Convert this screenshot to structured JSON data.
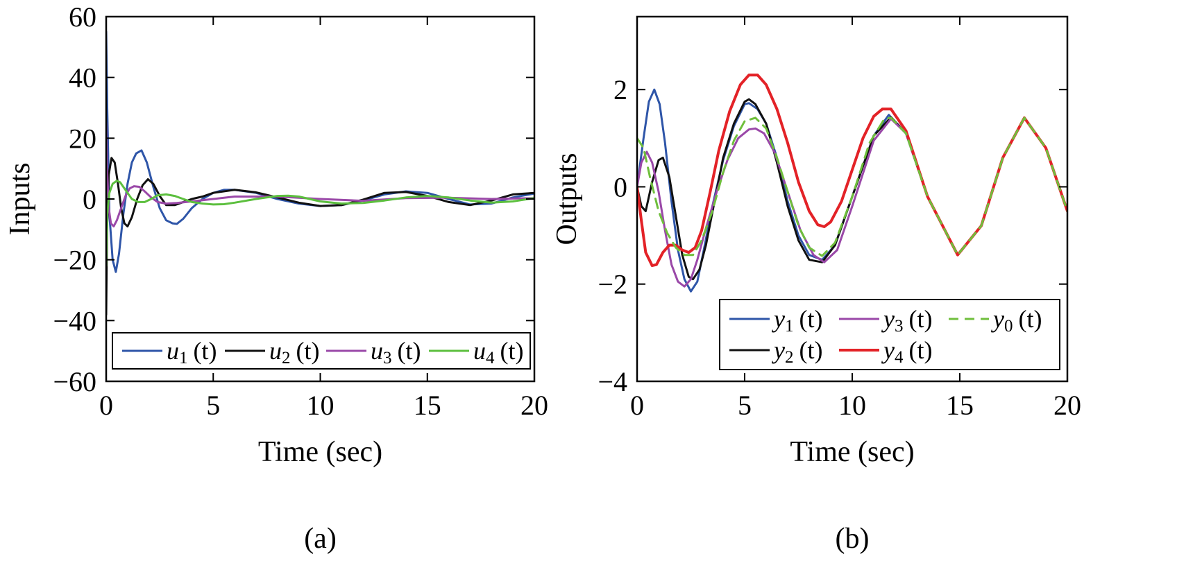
{
  "chart_data": [
    {
      "type": "line",
      "panel_label": "(a)",
      "xlabel": "Time (sec)",
      "ylabel": "Inputs",
      "xlim": [
        0,
        20
      ],
      "ylim": [
        -60,
        60
      ],
      "x_ticks": [
        "0",
        "5",
        "10",
        "15",
        "20"
      ],
      "y_ticks": [
        "60",
        "40",
        "20",
        "0",
        "−20",
        "−40",
        "−60"
      ],
      "grid": false,
      "legend_position": "bottom, single row",
      "series": [
        {
          "name": "u1 (t)",
          "sym": "u",
          "sub": "1",
          "arg": "(t)",
          "color": "#2e55a8",
          "dashed": false,
          "x": [
            0,
            0.05,
            0.15,
            0.3,
            0.45,
            0.6,
            0.8,
            1.0,
            1.2,
            1.4,
            1.65,
            1.9,
            2.2,
            2.5,
            2.8,
            3.1,
            3.3,
            3.6,
            4.0,
            4.5,
            5.0,
            5.5,
            6.0,
            7.0,
            8.0,
            9.0,
            10.0,
            11.0,
            12.0,
            13.0,
            14.0,
            15.0,
            16.0,
            17.0,
            18.0,
            19.0,
            20.0
          ],
          "y": [
            55,
            30,
            -5,
            -20,
            -24,
            -18,
            -5,
            5,
            12,
            15,
            16,
            12,
            4,
            -3,
            -7,
            -8,
            -8.2,
            -6.5,
            -3,
            0,
            2,
            3,
            3,
            2,
            0,
            -1.5,
            -2.3,
            -2,
            -0.5,
            1.5,
            2.5,
            2,
            0,
            -1.8,
            -1.5,
            0.5,
            1.8
          ]
        },
        {
          "name": "u2 (t)",
          "sym": "u",
          "sub": "2",
          "arg": "(t)",
          "color": "#111111",
          "dashed": false,
          "x": [
            0,
            0.04,
            0.12,
            0.25,
            0.4,
            0.55,
            0.7,
            0.85,
            1.0,
            1.2,
            1.45,
            1.7,
            1.95,
            2.2,
            2.5,
            2.8,
            3.2,
            3.6,
            4.0,
            4.5,
            5.0,
            6.0,
            7.0,
            8.0,
            9.0,
            10.0,
            11.0,
            12.0,
            13.0,
            14.0,
            15.0,
            16.0,
            17.0,
            18.0,
            19.0,
            20.0
          ],
          "y": [
            -38,
            -10,
            8,
            13.5,
            12,
            5,
            -3,
            -8,
            -9,
            -6,
            0,
            4.5,
            6.5,
            5,
            1,
            -2,
            -2,
            -1,
            0,
            0.8,
            2,
            3,
            2.2,
            0.5,
            -1.2,
            -2.3,
            -2,
            -0.2,
            2,
            2.3,
            1,
            -1,
            -2,
            -0.5,
            1.5,
            2
          ]
        },
        {
          "name": "u3 (t)",
          "sym": "u",
          "sub": "3",
          "arg": "(t)",
          "color": "#9a48a8",
          "dashed": false,
          "x": [
            0,
            0.04,
            0.12,
            0.22,
            0.35,
            0.5,
            0.7,
            0.9,
            1.1,
            1.3,
            1.55,
            1.8,
            2.1,
            2.4,
            2.8,
            3.3,
            4.0,
            5.0,
            6.0,
            8.0,
            10.0,
            12.0,
            14.0,
            16.0,
            18.0,
            20.0
          ],
          "y": [
            25,
            10,
            -3,
            -8,
            -9,
            -7,
            -3,
            1,
            3.5,
            4.2,
            4,
            2.5,
            0.5,
            -1,
            -1.5,
            -1.3,
            -0.8,
            0,
            0.8,
            0.8,
            0,
            -0.6,
            0.3,
            0.4,
            0,
            0.3
          ]
        },
        {
          "name": "u4 (t)",
          "sym": "u",
          "sub": "4",
          "arg": "(t)",
          "color": "#5cbf3e",
          "dashed": false,
          "x": [
            0,
            0.05,
            0.15,
            0.3,
            0.5,
            0.65,
            0.8,
            1.0,
            1.2,
            1.5,
            1.8,
            2.1,
            2.4,
            2.8,
            3.2,
            3.6,
            4.0,
            4.5,
            5.0,
            5.5,
            6.0,
            7.0,
            8.0,
            8.5,
            9.0,
            10.0,
            11.0,
            12.0,
            13.0,
            14.0,
            15.0,
            16.0,
            17.0,
            18.0,
            19.0,
            20.0
          ],
          "y": [
            -22,
            -5,
            2,
            5,
            6,
            5.5,
            4,
            2,
            0,
            -1,
            -1,
            0,
            1.2,
            1.5,
            1,
            0,
            -1,
            -1.5,
            -1.8,
            -1.7,
            -1.2,
            0,
            1,
            1.1,
            0.8,
            -0.8,
            -1.5,
            -1.3,
            -0.5,
            0.5,
            1,
            0.5,
            -0.5,
            -1.2,
            -0.8,
            0.3
          ]
        }
      ]
    },
    {
      "type": "line",
      "panel_label": "(b)",
      "xlabel": "Time (sec)",
      "ylabel": "Outputs",
      "xlim": [
        0,
        20
      ],
      "ylim": [
        -4,
        3.5
      ],
      "x_ticks": [
        "0",
        "5",
        "10",
        "15",
        "20"
      ],
      "y_ticks": [
        "2",
        "0",
        "−2",
        "−4"
      ],
      "y_tick_values": [
        2,
        0,
        -2,
        -4
      ],
      "grid": false,
      "legend_position": "bottom-right, three columns",
      "series": [
        {
          "name": "y1 (t)",
          "sym": "y",
          "sub": "1",
          "arg": "(t)",
          "color": "#2e55a8",
          "dashed": false,
          "x": [
            0,
            0.3,
            0.55,
            0.8,
            1.05,
            1.3,
            1.6,
            1.9,
            2.2,
            2.5,
            2.8,
            3.1,
            3.5,
            4.0,
            4.5,
            5.0,
            5.2,
            5.6,
            6.0,
            6.5,
            7.0,
            7.5,
            8.0,
            8.6,
            9.2,
            10.0,
            11.0,
            11.7,
            12.5,
            13.5,
            14.9,
            16.0,
            17.0,
            18.0,
            19.0,
            20.0
          ],
          "y": [
            0,
            1.0,
            1.75,
            2.0,
            1.7,
            0.9,
            -0.3,
            -1.3,
            -1.9,
            -2.15,
            -1.95,
            -1.3,
            -0.4,
            0.55,
            1.25,
            1.7,
            1.72,
            1.6,
            1.3,
            0.6,
            -0.3,
            -1.0,
            -1.4,
            -1.5,
            -1.2,
            -0.2,
            1.05,
            1.48,
            1.1,
            -0.2,
            -1.4,
            -0.8,
            0.6,
            1.42,
            0.8,
            -0.5
          ]
        },
        {
          "name": "y2 (t)",
          "sym": "y",
          "sub": "2",
          "arg": "(t)",
          "color": "#111111",
          "dashed": false,
          "x": [
            0,
            0.2,
            0.4,
            0.7,
            1.0,
            1.2,
            1.5,
            1.8,
            2.1,
            2.4,
            2.6,
            2.9,
            3.2,
            3.6,
            4.0,
            4.5,
            5.0,
            5.2,
            5.5,
            6.0,
            6.5,
            7.0,
            7.5,
            8.0,
            8.6,
            9.2,
            10.0,
            11.0,
            11.8,
            12.5,
            13.5,
            14.9,
            16.0,
            17.0,
            18.0,
            19.0,
            20.0
          ],
          "y": [
            0,
            -0.4,
            -0.5,
            0.1,
            0.55,
            0.6,
            0.2,
            -0.6,
            -1.4,
            -1.85,
            -1.9,
            -1.7,
            -1.2,
            -0.3,
            0.6,
            1.3,
            1.75,
            1.8,
            1.7,
            1.3,
            0.5,
            -0.4,
            -1.1,
            -1.5,
            -1.55,
            -1.2,
            -0.2,
            1.05,
            1.43,
            1.1,
            -0.2,
            -1.4,
            -0.8,
            0.6,
            1.42,
            0.8,
            -0.5
          ]
        },
        {
          "name": "y3 (t)",
          "sym": "y",
          "sub": "3",
          "arg": "(t)",
          "color": "#9a48a8",
          "dashed": false,
          "x": [
            0,
            0.2,
            0.45,
            0.7,
            1.0,
            1.3,
            1.6,
            1.9,
            2.2,
            2.5,
            2.8,
            3.2,
            3.7,
            4.2,
            4.7,
            5.2,
            5.5,
            5.9,
            6.4,
            7.0,
            7.6,
            8.2,
            8.7,
            9.3,
            10.0,
            11.0,
            11.8,
            12.5,
            13.5,
            14.9,
            16.0,
            17.0,
            18.0,
            19.0,
            20.0
          ],
          "y": [
            0,
            0.5,
            0.72,
            0.5,
            -0.1,
            -0.9,
            -1.6,
            -1.95,
            -2.05,
            -1.9,
            -1.5,
            -0.85,
            -0.1,
            0.55,
            1.0,
            1.18,
            1.2,
            1.1,
            0.7,
            -0.1,
            -0.9,
            -1.4,
            -1.55,
            -1.3,
            -0.4,
            0.95,
            1.4,
            1.1,
            -0.2,
            -1.4,
            -0.8,
            0.6,
            1.42,
            0.8,
            -0.5
          ]
        },
        {
          "name": "y4 (t)",
          "sym": "y",
          "sub": "4",
          "arg": "(t)",
          "color": "#e32227",
          "dashed": false,
          "x": [
            0,
            0.2,
            0.4,
            0.7,
            0.9,
            1.2,
            1.5,
            1.8,
            2.1,
            2.4,
            2.7,
            3.0,
            3.4,
            3.8,
            4.3,
            4.8,
            5.2,
            5.6,
            6.0,
            6.5,
            7.0,
            7.5,
            8.0,
            8.4,
            8.7,
            9.0,
            9.5,
            10.0,
            10.5,
            11.0,
            11.4,
            11.8,
            12.5,
            13.5,
            14.9,
            16.0,
            17.0,
            18.0,
            19.0,
            20.0
          ],
          "y": [
            0,
            -0.7,
            -1.35,
            -1.62,
            -1.6,
            -1.35,
            -1.2,
            -1.2,
            -1.3,
            -1.35,
            -1.25,
            -0.9,
            -0.1,
            0.75,
            1.55,
            2.1,
            2.3,
            2.3,
            2.1,
            1.6,
            0.9,
            0.1,
            -0.5,
            -0.78,
            -0.82,
            -0.72,
            -0.3,
            0.35,
            1.0,
            1.45,
            1.6,
            1.6,
            1.15,
            -0.2,
            -1.4,
            -0.8,
            0.6,
            1.42,
            0.8,
            -0.5
          ]
        },
        {
          "name": "y0 (t)",
          "sym": "y",
          "sub": "0",
          "arg": "(t)",
          "color": "#6fbf3c",
          "dashed": true,
          "x": [
            0,
            0.3,
            0.6,
            1.0,
            1.4,
            1.8,
            2.2,
            2.6,
            3.0,
            3.5,
            4.0,
            4.5,
            5.0,
            5.5,
            6.0,
            6.5,
            7.0,
            7.5,
            8.0,
            8.6,
            9.2,
            10.0,
            10.8,
            11.5,
            11.8,
            12.5,
            13.5,
            14.9,
            16.0,
            17.0,
            18.0,
            19.0,
            20.0
          ],
          "y": [
            1.0,
            0.8,
            0.2,
            -0.5,
            -0.95,
            -1.25,
            -1.4,
            -1.4,
            -1.1,
            -0.5,
            0.3,
            0.95,
            1.35,
            1.42,
            1.2,
            0.6,
            -0.1,
            -0.8,
            -1.25,
            -1.42,
            -1.15,
            -0.2,
            0.9,
            1.4,
            1.42,
            1.1,
            -0.2,
            -1.4,
            -0.8,
            0.6,
            1.42,
            0.8,
            -0.5
          ]
        }
      ]
    }
  ]
}
